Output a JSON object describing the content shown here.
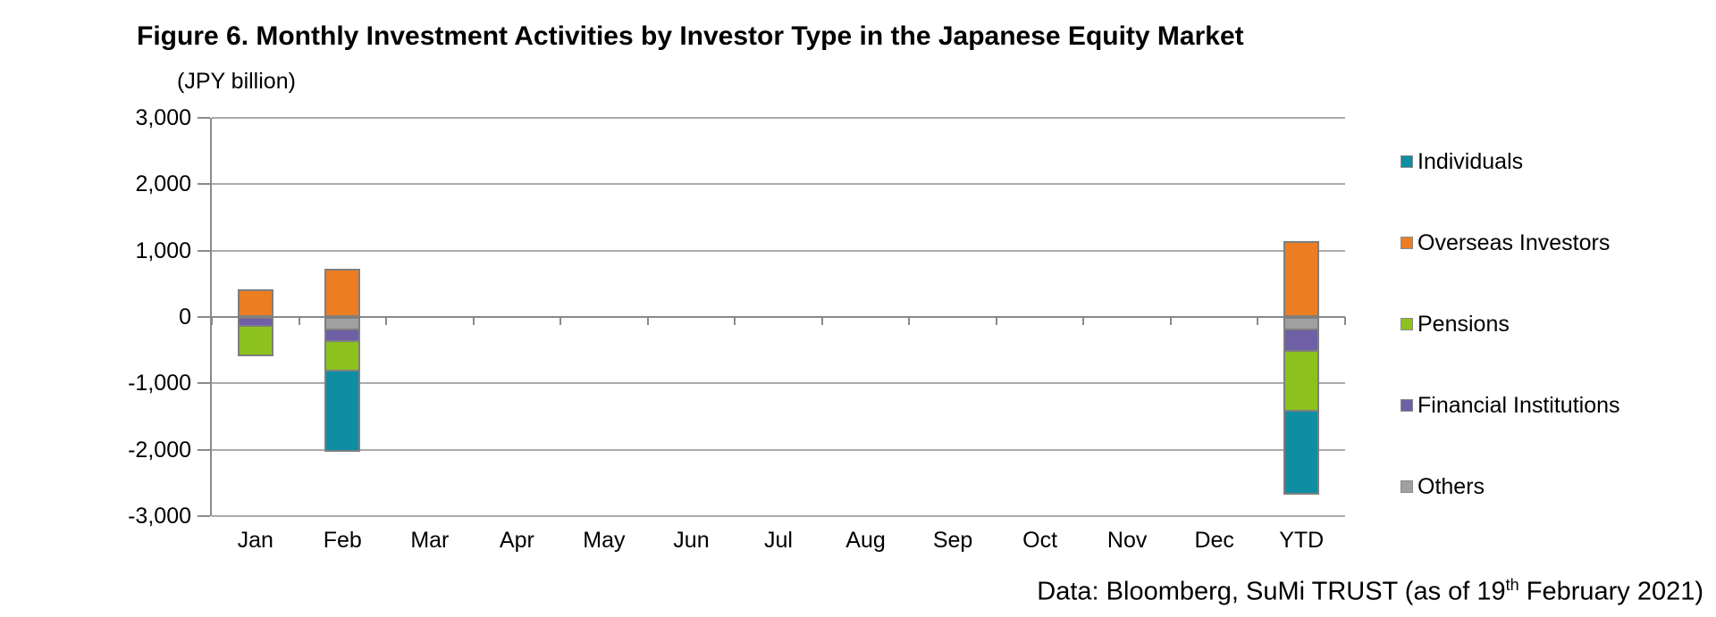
{
  "title": "Figure 6. Monthly Investment Activities by Investor Type in the Japanese Equity Market",
  "unit_label": "(JPY billion)",
  "source_note": {
    "prefix": "Data: Bloomberg, SuMi TRUST (as of 19",
    "superscript": "th",
    "suffix": " February 2021)"
  },
  "chart_data": {
    "type": "bar",
    "stacked": true,
    "title": "Figure 6. Monthly Investment Activities by Investor Type in the Japanese Equity Market",
    "ylabel": "(JPY billion)",
    "categories": [
      "Jan",
      "Feb",
      "Mar",
      "Apr",
      "May",
      "Jun",
      "Jul",
      "Aug",
      "Sep",
      "Oct",
      "Nov",
      "Dec",
      "YTD"
    ],
    "series": [
      {
        "name": "Individuals",
        "color": "#0E8DA3",
        "values": [
          0,
          -1210,
          0,
          0,
          0,
          0,
          0,
          0,
          0,
          0,
          0,
          0,
          -1250
        ]
      },
      {
        "name": "Overseas Investors",
        "color": "#ED7D23",
        "values": [
          420,
          730,
          0,
          0,
          0,
          0,
          0,
          0,
          0,
          0,
          0,
          0,
          1150
        ]
      },
      {
        "name": "Pensions",
        "color": "#8DC21E",
        "values": [
          -440,
          -440,
          0,
          0,
          0,
          0,
          0,
          0,
          0,
          0,
          0,
          0,
          -900
        ]
      },
      {
        "name": "Financial Institutions",
        "color": "#6E5FA7",
        "values": [
          -150,
          -180,
          0,
          0,
          0,
          0,
          0,
          0,
          0,
          0,
          0,
          0,
          -330
        ]
      },
      {
        "name": "Others",
        "color": "#A0A0A0",
        "values": [
          0,
          -200,
          0,
          0,
          0,
          0,
          0,
          0,
          0,
          0,
          0,
          0,
          -200
        ]
      }
    ],
    "ylim": [
      -3000,
      3000
    ],
    "ytick_step": 1000,
    "ytick_labels": [
      "3,000",
      "2,000",
      "1,000",
      "0",
      "-1,000",
      "-2,000",
      "-3,000"
    ],
    "grid": true,
    "legend_position": "right",
    "bar_border_color": "#7f7f7f",
    "gridline_color": "#ababab",
    "axis_color": "#8a8a8a"
  }
}
